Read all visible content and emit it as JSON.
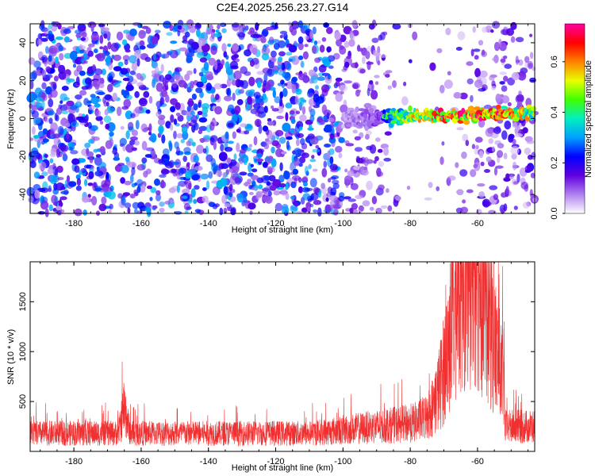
{
  "title": "C2E4.2025.256.23.27.G14",
  "chart_data": [
    {
      "type": "heatmap",
      "name": "spectrogram",
      "xlabel": "Height of straight line (km)",
      "ylabel": "Frequency (Hz)",
      "xlim": [
        -193,
        -43
      ],
      "ylim": [
        -50,
        50
      ],
      "xticks": [
        -180,
        -160,
        -140,
        -120,
        -100,
        -80,
        -60
      ],
      "yticks": [
        -40,
        -20,
        0,
        20,
        40
      ],
      "colorbar": {
        "label": "Normalized spectral amplitude",
        "range": [
          0,
          0.75
        ],
        "ticks": [
          0.0,
          0.2,
          0.4,
          0.6
        ],
        "colors": [
          "#ffffff",
          "#b080f0",
          "#6000e0",
          "#0000ff",
          "#00a0ff",
          "#00f0c0",
          "#40ff00",
          "#e8ff00",
          "#ff8000",
          "#ff0000",
          "#ff00a0"
        ]
      },
      "signal": {
        "x_start": -100,
        "x_end": -43,
        "frequency": 0,
        "peak_x": -62,
        "peak_amplitude": 0.75
      },
      "noise_gap": [
        -86,
        -62
      ]
    },
    {
      "type": "line",
      "name": "snr",
      "xlabel": "Height of straight line (km)",
      "ylabel": "SNR (10 * v/v)",
      "xlim": [
        -193,
        -43
      ],
      "ylim": [
        0,
        1900
      ],
      "xticks": [
        -180,
        -160,
        -140,
        -120,
        -100,
        -80,
        -60
      ],
      "yticks": [
        500,
        1000,
        1500
      ],
      "color": "#f03030",
      "baseline": 220,
      "peaks": [
        {
          "x": -165,
          "value": 740
        },
        {
          "x": -62,
          "value": 1900
        },
        {
          "x": -65,
          "value": 1650
        },
        {
          "x": -58,
          "value": 1480
        }
      ]
    }
  ]
}
